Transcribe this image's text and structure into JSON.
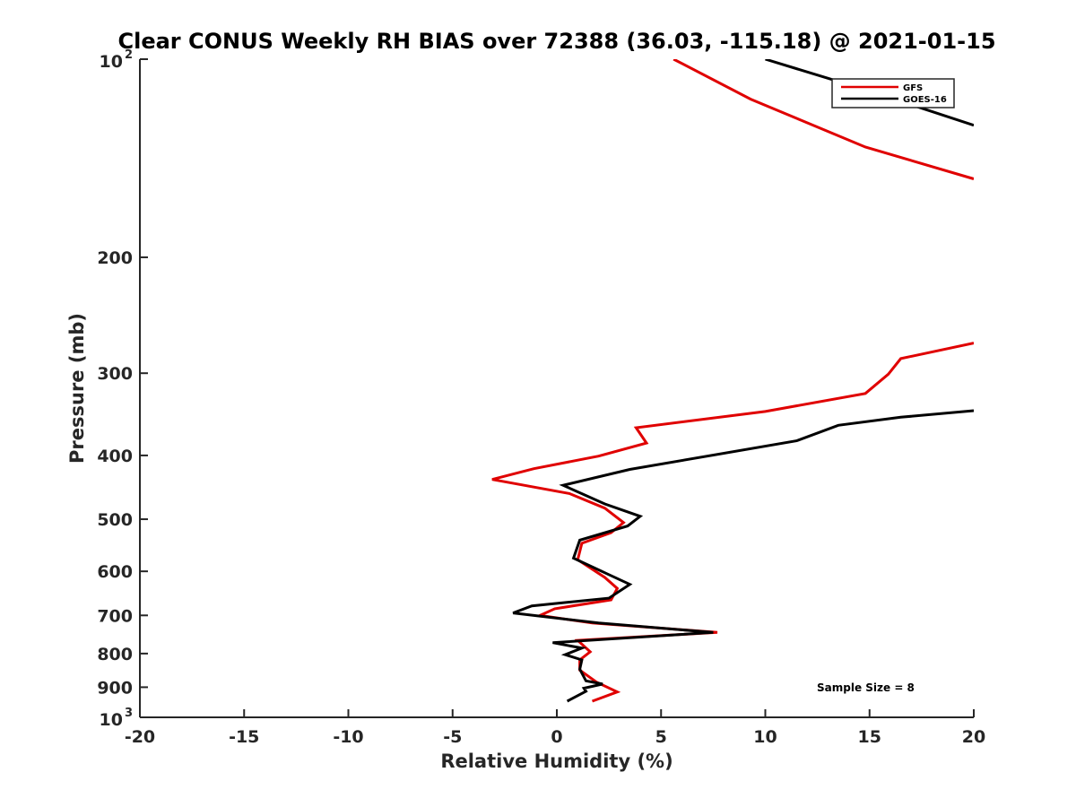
{
  "chart_data": {
    "type": "line",
    "title": "Clear CONUS Weekly RH BIAS over 72388 (36.03, -115.18) @ 2021-01-15",
    "xlabel": "Relative Humidity (%)",
    "ylabel": "Pressure (mb)",
    "xlim": [
      -20,
      20
    ],
    "ylim": [
      100,
      1000
    ],
    "y_scale": "log",
    "y_reversed": true,
    "x_ticks": [
      "-20",
      "-15",
      "-10",
      "-5",
      "0",
      "5",
      "10",
      "15",
      "20"
    ],
    "y_ticks": [
      {
        "value": 100,
        "base": "10",
        "exp": "2"
      },
      {
        "value": 200,
        "label": "200"
      },
      {
        "value": 300,
        "label": "300"
      },
      {
        "value": 400,
        "label": "400"
      },
      {
        "value": 500,
        "label": "500"
      },
      {
        "value": 600,
        "label": "600"
      },
      {
        "value": 700,
        "label": "700"
      },
      {
        "value": 800,
        "label": "800"
      },
      {
        "value": 900,
        "label": "900"
      },
      {
        "value": 1000,
        "base": "10",
        "exp": "3"
      }
    ],
    "legend_position": "top-right",
    "annotation": "Sample Size = 8",
    "series": [
      {
        "name": "GFS",
        "color": "#e00000",
        "points": [
          [
            5.6,
            100
          ],
          [
            9.3,
            115
          ],
          [
            14.8,
            136
          ],
          [
            20.0,
            152
          ],
          [
            null,
            null
          ],
          [
            20.0,
            270
          ],
          [
            16.5,
            285
          ],
          [
            15.9,
            301
          ],
          [
            14.8,
            322
          ],
          [
            10.0,
            343
          ],
          [
            3.8,
            363
          ],
          [
            4.3,
            383
          ],
          [
            2.0,
            401
          ],
          [
            -1.1,
            419
          ],
          [
            -3.1,
            435
          ],
          [
            0.6,
            457
          ],
          [
            2.3,
            481
          ],
          [
            3.2,
            506
          ],
          [
            2.6,
            524
          ],
          [
            1.2,
            544
          ],
          [
            1.0,
            576
          ],
          [
            2.3,
            613
          ],
          [
            2.9,
            637
          ],
          [
            2.6,
            663
          ],
          [
            -0.1,
            684
          ],
          [
            -0.8,
            700
          ],
          [
            1.7,
            719
          ],
          [
            7.7,
            743
          ],
          [
            1.0,
            764
          ],
          [
            1.6,
            795
          ],
          [
            1.1,
            818
          ],
          [
            1.1,
            848
          ],
          [
            1.9,
            884
          ],
          [
            2.9,
            915
          ],
          [
            1.7,
            945
          ]
        ]
      },
      {
        "name": "GOES-16",
        "color": "#000000",
        "points": [
          [
            10.0,
            100
          ],
          [
            14.7,
            111
          ],
          [
            20.0,
            126
          ],
          [
            null,
            null
          ],
          [
            20.0,
            342
          ],
          [
            16.5,
            350
          ],
          [
            13.5,
            360
          ],
          [
            11.5,
            380
          ],
          [
            3.5,
            420
          ],
          [
            0.3,
            444
          ],
          [
            2.3,
            474
          ],
          [
            4.0,
            495
          ],
          [
            3.4,
            512
          ],
          [
            1.1,
            538
          ],
          [
            0.8,
            573
          ],
          [
            2.4,
            605
          ],
          [
            3.5,
            628
          ],
          [
            2.5,
            659
          ],
          [
            -1.2,
            677
          ],
          [
            -2.1,
            694
          ],
          [
            2.0,
            719
          ],
          [
            7.5,
            743
          ],
          [
            -0.2,
            770
          ],
          [
            1.2,
            785
          ],
          [
            0.4,
            803
          ],
          [
            1.2,
            818
          ],
          [
            1.1,
            845
          ],
          [
            1.4,
            880
          ],
          [
            2.2,
            890
          ],
          [
            1.3,
            903
          ],
          [
            1.4,
            913
          ],
          [
            0.5,
            945
          ]
        ]
      }
    ]
  }
}
